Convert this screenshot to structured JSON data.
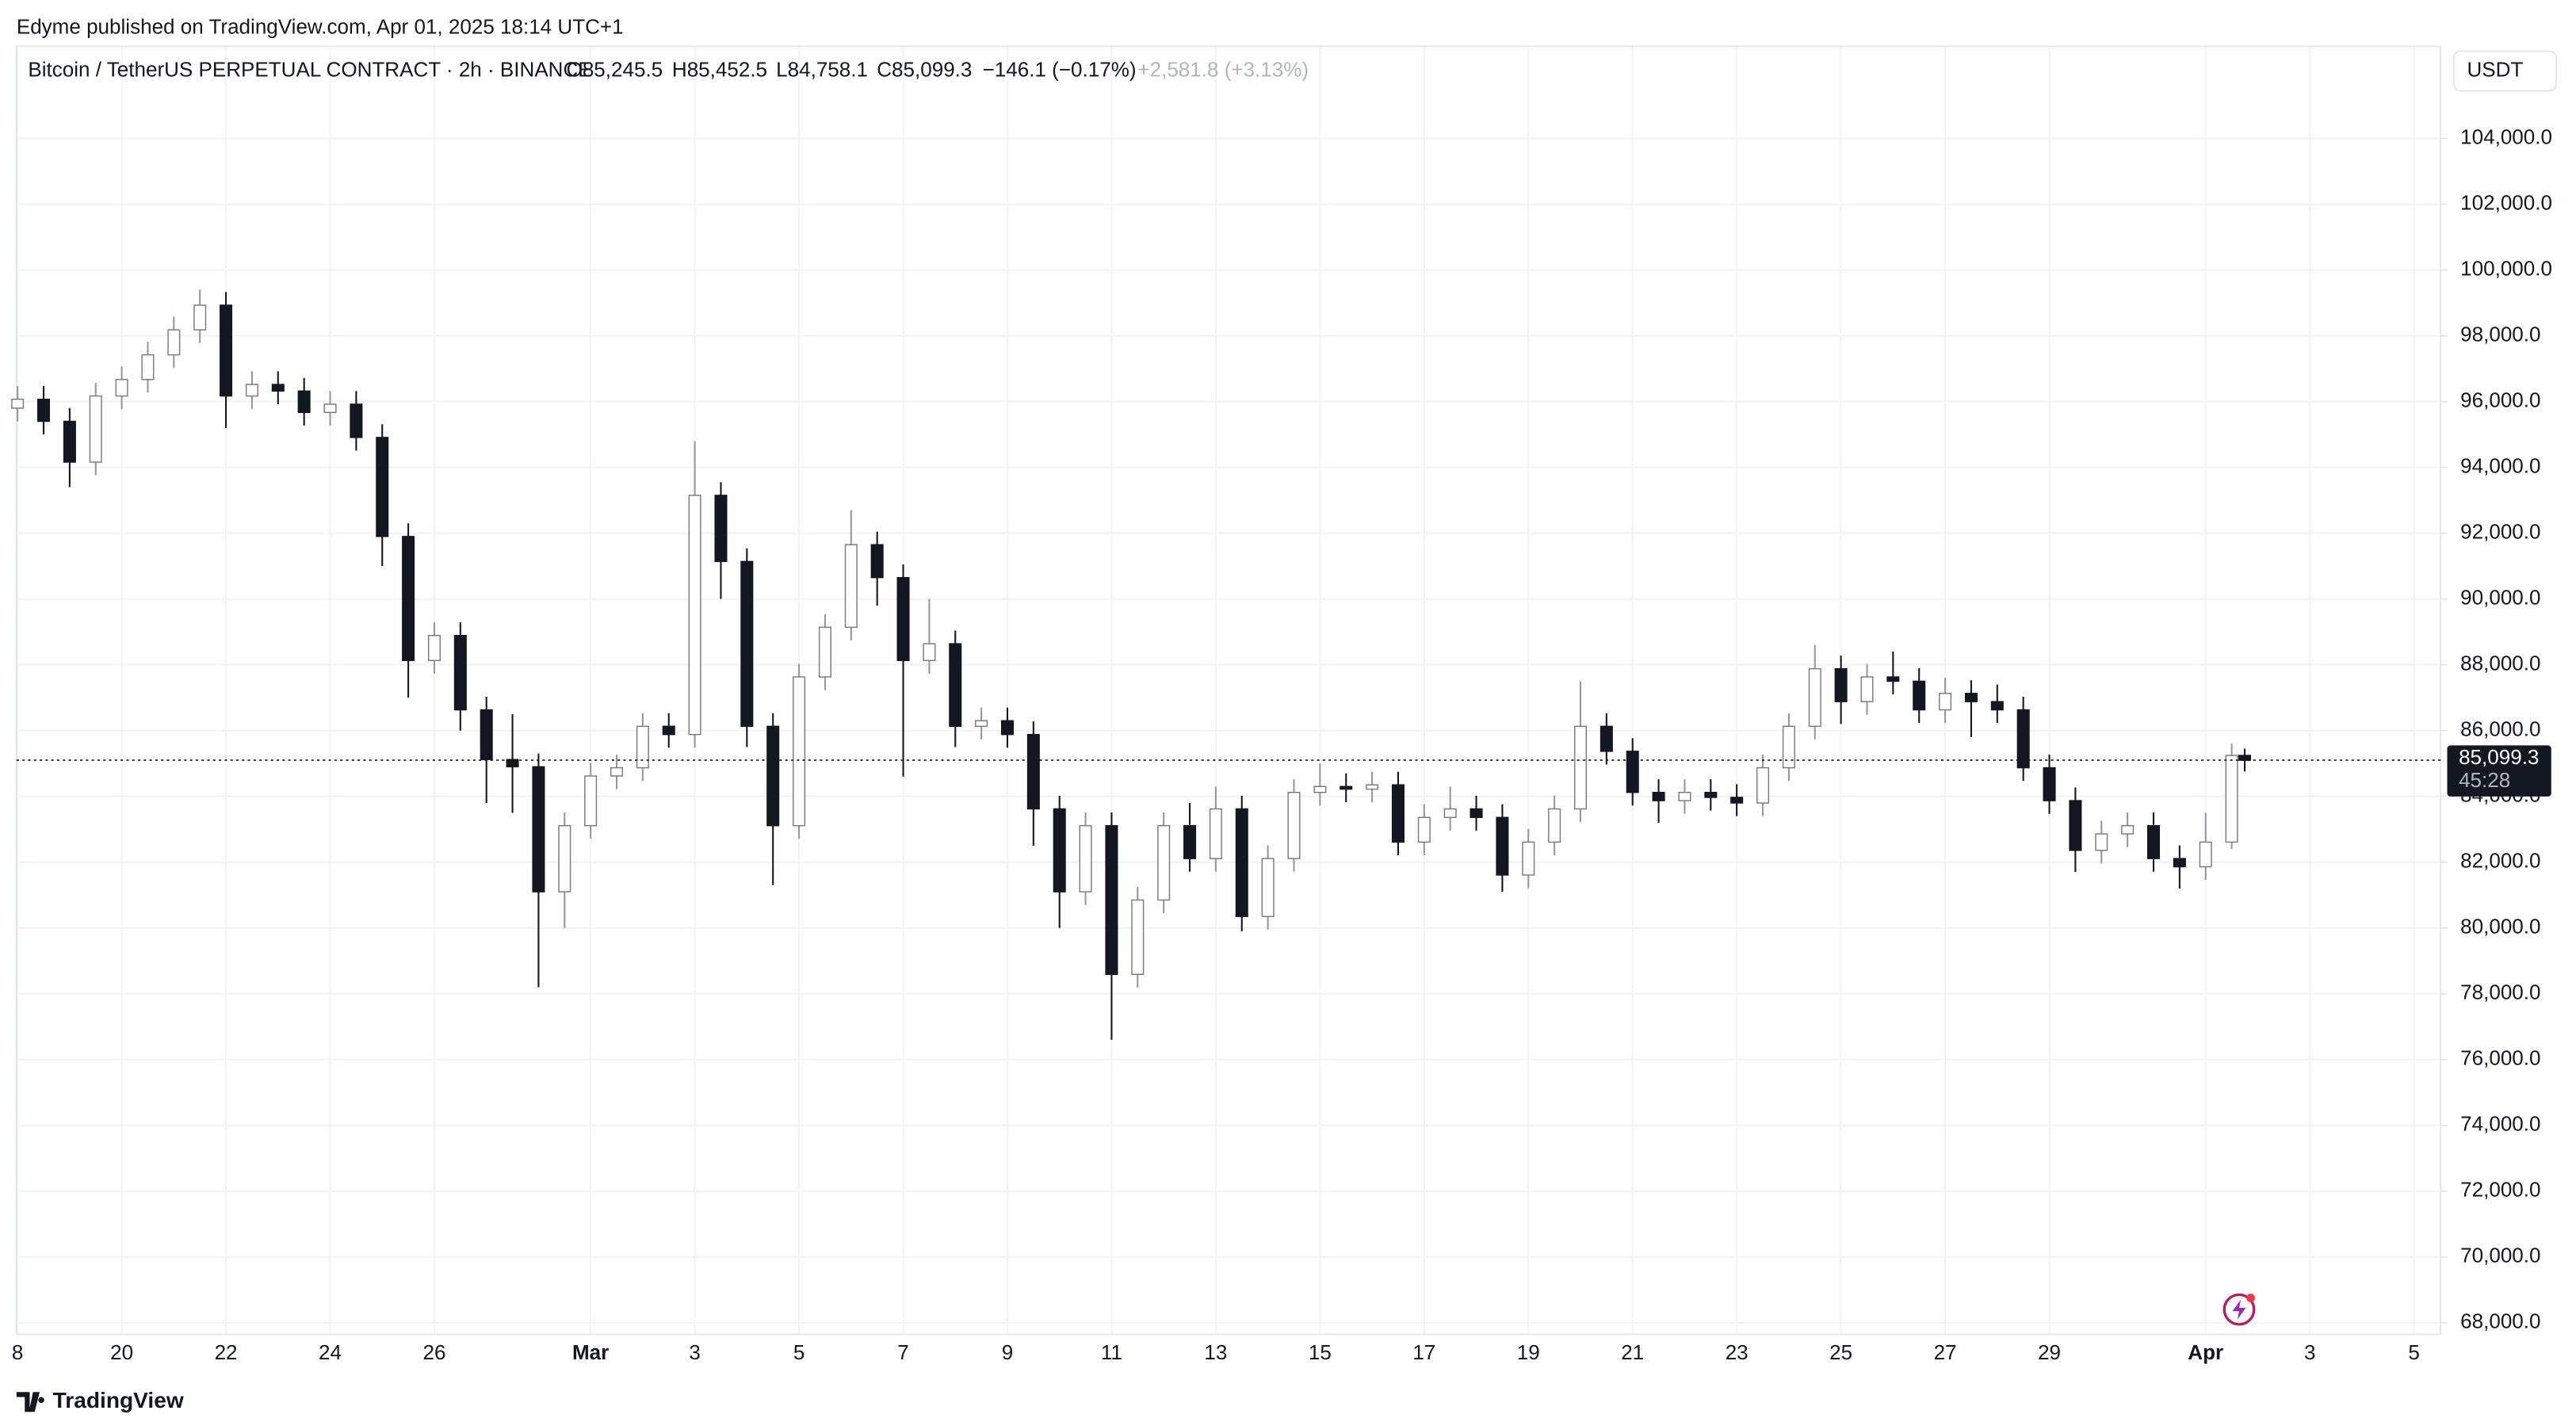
{
  "header": "Edyme published on TradingView.com, Apr 01, 2025 18:14 UTC+1",
  "footer_brand": "TradingView",
  "chart_data": {
    "type": "candlestick",
    "title": "Bitcoin / TetherUS PERPETUAL CONTRACT · 2h · BINANCE",
    "legend_values": [
      "O85,245.5",
      "H85,452.5",
      "L84,758.1",
      "C85,099.3",
      "−146.1 (−0.17%)",
      "+2,581.8 (+3.13%)"
    ],
    "currency": "USDT",
    "last_price_label": "85,099.3",
    "countdown": "45:28",
    "up_color": "#b2b5be",
    "down_color": "#131722",
    "grid": true,
    "xlim": [
      -0.02,
      46.51
    ],
    "ylim": [
      67650,
      106800
    ],
    "xticks": [
      {
        "value": 0,
        "label": "8"
      },
      {
        "value": 2,
        "label": "20"
      },
      {
        "value": 4,
        "label": "22"
      },
      {
        "value": 6,
        "label": "24"
      },
      {
        "value": 8,
        "label": "26"
      },
      {
        "value": 11,
        "label": "Mar"
      },
      {
        "value": 13,
        "label": "3"
      },
      {
        "value": 15,
        "label": "5"
      },
      {
        "value": 17,
        "label": "7"
      },
      {
        "value": 19,
        "label": "9"
      },
      {
        "value": 21,
        "label": "11"
      },
      {
        "value": 23,
        "label": "13"
      },
      {
        "value": 25,
        "label": "15"
      },
      {
        "value": 27,
        "label": "17"
      },
      {
        "value": 29,
        "label": "19"
      },
      {
        "value": 31,
        "label": "21"
      },
      {
        "value": 33,
        "label": "23"
      },
      {
        "value": 35,
        "label": "25"
      },
      {
        "value": 37,
        "label": "27"
      },
      {
        "value": 39,
        "label": "29"
      },
      {
        "value": 42,
        "label": "Apr"
      },
      {
        "value": 44,
        "label": "3"
      },
      {
        "value": 46,
        "label": "5"
      }
    ],
    "yticks": [
      {
        "value": 68000,
        "label": "68,000.0"
      },
      {
        "value": 70000,
        "label": "70,000.0"
      },
      {
        "value": 72000,
        "label": "72,000.0"
      },
      {
        "value": 74000,
        "label": "74,000.0"
      },
      {
        "value": 76000,
        "label": "76,000.0"
      },
      {
        "value": 78000,
        "label": "78,000.0"
      },
      {
        "value": 80000,
        "label": "80,000.0"
      },
      {
        "value": 82000,
        "label": "82,000.0"
      },
      {
        "value": 84000,
        "label": "84,000.0"
      },
      {
        "value": 86000,
        "label": "86,000.0"
      },
      {
        "value": 88000,
        "label": "88,000.0"
      },
      {
        "value": 90000,
        "label": "90,000.0"
      },
      {
        "value": 92000,
        "label": "92,000.0"
      },
      {
        "value": 94000,
        "label": "94,000.0"
      },
      {
        "value": 96000,
        "label": "96,000.0"
      },
      {
        "value": 98000,
        "label": "98,000.0"
      },
      {
        "value": 100000,
        "label": "100,000.0"
      },
      {
        "value": 102000,
        "label": "102,000.0"
      },
      {
        "value": 104000,
        "label": "104,000.0"
      }
    ],
    "candles": {
      "x": [
        0,
        0.5,
        1,
        1.5,
        2,
        2.5,
        3,
        3.5,
        4,
        4.5,
        5,
        5.5,
        6,
        6.5,
        7,
        7.5,
        8,
        8.5,
        9,
        9.5,
        10,
        10.5,
        11,
        11.5,
        12,
        12.5,
        13,
        13.5,
        14,
        14.5,
        15,
        15.5,
        16,
        16.5,
        17,
        17.5,
        18,
        18.5,
        19,
        19.5,
        20,
        20.5,
        21,
        21.5,
        22,
        22.5,
        23,
        23.5,
        24,
        24.5,
        25,
        25.5,
        26,
        26.5,
        27,
        27.5,
        28,
        28.5,
        29,
        29.5,
        30,
        30.5,
        31,
        31.5,
        32,
        32.5,
        33,
        33.5,
        34,
        34.5,
        35,
        35.5,
        36,
        36.5,
        37,
        37.5,
        38,
        38.5,
        39,
        39.5,
        40,
        40.5,
        41,
        41.5,
        42,
        42.5,
        42.75
      ],
      "open": [
        95800,
        96070,
        95400,
        94160,
        96170,
        96670,
        97420,
        98180,
        98930,
        96170,
        96520,
        96320,
        95670,
        95920,
        94910,
        91900,
        88130,
        88890,
        86630,
        85120,
        84900,
        81100,
        83110,
        84620,
        84870,
        86130,
        85880,
        93150,
        91140,
        86130,
        83110,
        87630,
        89140,
        91650,
        90650,
        88130,
        88640,
        86130,
        86300,
        85880,
        83620,
        81100,
        83110,
        78590,
        80850,
        83110,
        82110,
        83620,
        80350,
        82110,
        84120,
        84300,
        84220,
        84350,
        82610,
        83360,
        83620,
        83360,
        81610,
        82610,
        83620,
        86130,
        85370,
        84120,
        83870,
        84120,
        83970,
        83800,
        84870,
        86130,
        87880,
        86880,
        87630,
        87500,
        86630,
        87130,
        86880,
        86630,
        84870,
        83870,
        82360,
        82860,
        83110,
        82110,
        81860,
        82610,
        85245.5
      ],
      "high": [
        96470,
        96470,
        95800,
        96570,
        97070,
        97820,
        98580,
        99400,
        99330,
        96920,
        96920,
        96720,
        96320,
        96320,
        95310,
        92300,
        89290,
        89290,
        87030,
        86500,
        85300,
        83510,
        85020,
        85270,
        86530,
        86530,
        94800,
        93550,
        91540,
        86530,
        88030,
        89540,
        92700,
        92050,
        91050,
        90000,
        89040,
        86700,
        86700,
        86280,
        84020,
        83510,
        83510,
        81250,
        83510,
        83800,
        84300,
        84020,
        82510,
        84520,
        85000,
        84700,
        84750,
        84750,
        83760,
        84300,
        84020,
        83760,
        83010,
        84020,
        87500,
        86530,
        85770,
        84520,
        84520,
        84520,
        84370,
        85270,
        86530,
        88600,
        88280,
        88030,
        88400,
        87900,
        87600,
        87530,
        87400,
        87030,
        85270,
        84270,
        83260,
        83510,
        83510,
        82510,
        83500,
        85600,
        85452.5
      ],
      "low": [
        95400,
        95000,
        93400,
        93760,
        95770,
        96270,
        97020,
        97780,
        95200,
        95770,
        95920,
        95270,
        95270,
        94510,
        91000,
        87000,
        87730,
        86000,
        83800,
        83500,
        78200,
        80000,
        82710,
        84220,
        84470,
        85480,
        85480,
        90000,
        85500,
        81300,
        82710,
        87230,
        88740,
        89800,
        84600,
        87730,
        85500,
        85730,
        85480,
        82500,
        80000,
        80700,
        76600,
        78190,
        80450,
        81710,
        81710,
        79900,
        79950,
        81710,
        83720,
        83820,
        83820,
        82210,
        82210,
        82960,
        82960,
        81100,
        81210,
        82210,
        83220,
        84970,
        83720,
        83200,
        83470,
        83570,
        83400,
        83400,
        84470,
        85730,
        86200,
        86480,
        87100,
        86230,
        86230,
        85800,
        86230,
        84470,
        83470,
        81700,
        81960,
        82460,
        81710,
        81200,
        81460,
        82400,
        84758.1
      ],
      "close": [
        96070,
        95400,
        94160,
        96170,
        96670,
        97420,
        98180,
        98930,
        96170,
        96520,
        96320,
        95670,
        95920,
        94910,
        91900,
        88130,
        88890,
        86630,
        85120,
        84900,
        81100,
        83110,
        84620,
        84870,
        86130,
        85880,
        93150,
        91140,
        86130,
        83110,
        87630,
        89140,
        91650,
        90650,
        88130,
        88640,
        86130,
        86300,
        85880,
        83620,
        81100,
        83110,
        78590,
        80850,
        83110,
        82110,
        83620,
        80350,
        82110,
        84120,
        84300,
        84220,
        84350,
        82610,
        83360,
        83620,
        83360,
        81610,
        82610,
        83620,
        86130,
        85370,
        84120,
        83870,
        84120,
        83970,
        83800,
        84870,
        86130,
        87880,
        86880,
        87630,
        87500,
        86630,
        87130,
        86880,
        86630,
        84870,
        83870,
        82360,
        82860,
        83110,
        82110,
        81860,
        82610,
        85245.5,
        85099.3
      ]
    }
  }
}
